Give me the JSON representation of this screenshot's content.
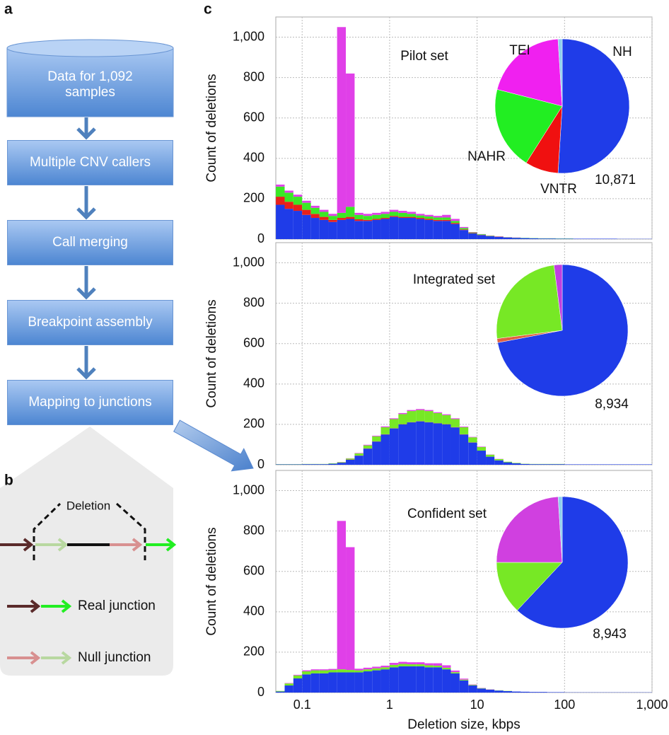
{
  "panel_labels": [
    "a",
    "b",
    "c"
  ],
  "flowchart": {
    "top": "Data for 1,092 samples",
    "steps": [
      "Multiple CNV callers",
      "Call merging",
      "Breakpoint assembly",
      "Mapping to junctions"
    ]
  },
  "junction": {
    "deletion": "Deletion",
    "real": "Real junction",
    "null": "Null junction"
  },
  "chart_data": [
    {
      "type": "histogram",
      "title": "Pilot set",
      "ylabel": "Count of deletions",
      "log_x": true,
      "grid": true,
      "xlim": [
        0.05,
        1000
      ],
      "ylim": [
        0,
        1100
      ],
      "yticks": [
        0,
        200,
        400,
        600,
        800,
        {
          "value": 1000,
          "label": "1,000"
        }
      ],
      "bins": [
        0.0501,
        0.0631,
        0.0794,
        0.1,
        0.126,
        0.158,
        0.2,
        0.251,
        0.316,
        0.398,
        0.501,
        0.631,
        0.794,
        1,
        1.26,
        1.58,
        2,
        2.51,
        3.16,
        3.98,
        5.01,
        6.31,
        7.94,
        10,
        12.6,
        15.8,
        20,
        25.1,
        31.6,
        39.8,
        50.1,
        63.1,
        79.4,
        100,
        126,
        158,
        200,
        251,
        316,
        398,
        501,
        631,
        794,
        1000
      ],
      "series": [
        {
          "color": "#1f3ce8",
          "values": [
            170,
            150,
            140,
            120,
            105,
            95,
            85,
            95,
            100,
            90,
            90,
            95,
            100,
            110,
            105,
            105,
            100,
            95,
            90,
            90,
            75,
            45,
            28,
            20,
            14,
            11,
            8,
            6,
            5,
            4,
            3,
            3,
            2,
            2,
            2,
            2,
            2,
            2,
            2,
            1,
            1,
            1,
            1
          ]
        },
        {
          "color": "#e8201a",
          "values": [
            40,
            35,
            30,
            25,
            20,
            15,
            10,
            10,
            10,
            8,
            5,
            5,
            5,
            5,
            5,
            5,
            5,
            5,
            5,
            5,
            5,
            3,
            2,
            1,
            1,
            1,
            0,
            0,
            0,
            0,
            0,
            0,
            0,
            0,
            0,
            0,
            0,
            0,
            0,
            0,
            0,
            0,
            0
          ]
        },
        {
          "color": "#3be825",
          "values": [
            50,
            45,
            40,
            35,
            30,
            25,
            20,
            25,
            50,
            22,
            20,
            20,
            20,
            20,
            20,
            15,
            12,
            12,
            12,
            12,
            10,
            7,
            3,
            3,
            2,
            1,
            1,
            1,
            1,
            1,
            1,
            1,
            1,
            1,
            0,
            0,
            0,
            0,
            0,
            0,
            0,
            0,
            0
          ]
        },
        {
          "color": "#e040e8",
          "values": [
            10,
            10,
            10,
            10,
            10,
            10,
            10,
            920,
            660,
            10,
            10,
            10,
            10,
            10,
            10,
            10,
            8,
            8,
            8,
            13,
            10,
            5,
            2,
            1,
            1,
            1,
            1,
            1,
            0,
            0,
            0,
            0,
            0,
            0,
            0,
            0,
            0,
            0,
            0,
            0,
            0,
            0,
            0
          ]
        }
      ]
    },
    {
      "type": "histogram",
      "title": "Integrated set",
      "ylabel": "Count of deletions",
      "log_x": true,
      "grid": true,
      "xlim": [
        0.05,
        1000
      ],
      "ylim": [
        0,
        1100
      ],
      "yticks": [
        0,
        200,
        400,
        600,
        800,
        {
          "value": 1000,
          "label": "1,000"
        }
      ],
      "bins": [
        0.0501,
        0.0631,
        0.0794,
        0.1,
        0.126,
        0.158,
        0.2,
        0.251,
        0.316,
        0.398,
        0.501,
        0.631,
        0.794,
        1,
        1.26,
        1.58,
        2,
        2.51,
        3.16,
        3.98,
        5.01,
        6.31,
        7.94,
        10,
        12.6,
        15.8,
        20,
        25.1,
        31.6,
        39.8,
        50.1,
        63.1,
        79.4,
        100,
        126,
        158,
        200,
        251,
        316,
        398,
        501,
        631,
        794,
        1000
      ],
      "series": [
        {
          "color": "#1f3ce8",
          "values": [
            2,
            2,
            2,
            3,
            3,
            3,
            5,
            10,
            25,
            45,
            80,
            115,
            150,
            180,
            200,
            210,
            215,
            210,
            205,
            200,
            185,
            150,
            110,
            70,
            40,
            22,
            12,
            7,
            4,
            3,
            3,
            3,
            3,
            2,
            2,
            2,
            2,
            2,
            2,
            2,
            2,
            2,
            2
          ]
        },
        {
          "color": "#e8201a",
          "values": [
            0,
            0,
            0,
            0,
            0,
            0,
            0,
            0,
            1,
            1,
            1,
            1,
            1,
            1,
            1,
            1,
            1,
            1,
            1,
            1,
            1,
            1,
            1,
            0,
            0,
            0,
            0,
            0,
            0,
            0,
            0,
            0,
            0,
            0,
            0,
            0,
            0,
            0,
            0,
            0,
            0,
            0,
            0
          ]
        },
        {
          "color": "#77e825",
          "values": [
            1,
            1,
            1,
            1,
            1,
            1,
            2,
            3,
            5,
            10,
            15,
            25,
            35,
            45,
            50,
            55,
            55,
            55,
            50,
            45,
            40,
            35,
            25,
            18,
            10,
            6,
            3,
            2,
            1,
            1,
            1,
            1,
            1,
            0,
            0,
            0,
            0,
            0,
            0,
            0,
            0,
            0,
            0
          ]
        },
        {
          "color": "#e040e8",
          "values": [
            0,
            0,
            0,
            0,
            0,
            0,
            0,
            1,
            1,
            2,
            3,
            3,
            4,
            4,
            5,
            5,
            5,
            5,
            4,
            4,
            4,
            3,
            2,
            2,
            1,
            1,
            0,
            0,
            0,
            0,
            0,
            0,
            0,
            0,
            0,
            0,
            0,
            0,
            0,
            0,
            0,
            0,
            0
          ]
        }
      ]
    },
    {
      "type": "histogram",
      "title": "Confident set",
      "ylabel": "Count of deletions",
      "xlabel": "Deletion size, kbps",
      "log_x": true,
      "grid": true,
      "xlim": [
        0.05,
        1000
      ],
      "ylim": [
        0,
        1100
      ],
      "xticks": [
        0.1,
        1,
        10,
        100,
        {
          "value": 1000,
          "label": "1,000"
        }
      ],
      "yticks": [
        0,
        200,
        400,
        600,
        800,
        {
          "value": 1000,
          "label": "1,000"
        }
      ],
      "bins": [
        0.0501,
        0.0631,
        0.0794,
        0.1,
        0.126,
        0.158,
        0.2,
        0.251,
        0.316,
        0.398,
        0.501,
        0.631,
        0.794,
        1,
        1.26,
        1.58,
        2,
        2.51,
        3.16,
        3.98,
        5.01,
        6.31,
        7.94,
        10,
        12.6,
        15.8,
        20,
        25.1,
        31.6,
        39.8,
        50.1,
        63.1,
        79.4,
        100,
        126,
        158,
        200,
        251,
        316,
        398,
        501,
        631,
        794,
        1000
      ],
      "series": [
        {
          "color": "#1f3ce8",
          "values": [
            5,
            35,
            70,
            90,
            95,
            95,
            100,
            100,
            100,
            100,
            105,
            110,
            115,
            125,
            130,
            130,
            130,
            125,
            125,
            115,
            95,
            60,
            35,
            20,
            14,
            10,
            7,
            5,
            4,
            3,
            3,
            2,
            2,
            1,
            1,
            1,
            1,
            1,
            1,
            1,
            1,
            1,
            1
          ]
        },
        {
          "color": "#e8201a",
          "values": [
            0,
            0,
            0,
            0,
            0,
            0,
            0,
            0,
            0,
            0,
            0,
            0,
            0,
            0,
            0,
            0,
            0,
            0,
            0,
            0,
            0,
            0,
            0,
            0,
            0,
            0,
            0,
            0,
            0,
            0,
            0,
            0,
            0,
            0,
            0,
            0,
            0,
            0,
            0,
            0,
            0,
            0,
            0
          ]
        },
        {
          "color": "#77e825",
          "values": [
            3,
            10,
            15,
            15,
            15,
            15,
            12,
            15,
            12,
            10,
            10,
            10,
            10,
            12,
            12,
            10,
            10,
            10,
            8,
            8,
            6,
            4,
            3,
            2,
            1,
            1,
            1,
            0,
            0,
            0,
            0,
            0,
            0,
            0,
            0,
            0,
            0,
            0,
            0,
            0,
            0,
            0,
            0
          ]
        },
        {
          "color": "#e040e8",
          "values": [
            0,
            2,
            3,
            5,
            5,
            5,
            5,
            735,
            608,
            8,
            8,
            8,
            8,
            10,
            10,
            10,
            10,
            10,
            12,
            12,
            8,
            5,
            2,
            1,
            1,
            0,
            0,
            0,
            0,
            0,
            0,
            0,
            0,
            0,
            0,
            0,
            0,
            0,
            0,
            0,
            0,
            0,
            0
          ]
        }
      ]
    },
    {
      "type": "pie",
      "categories": [
        "NH",
        "VNTR",
        "NAHR",
        "TEI",
        null
      ],
      "values": [
        51,
        8,
        20,
        20,
        1
      ],
      "colors": [
        "#1f3ce8",
        "#f01010",
        "#22ee22",
        "#f020f0",
        "#8fd0ee"
      ],
      "label_colors": [
        "#1a1a80",
        "#f01010",
        "#22dd22",
        "#f020f0",
        null
      ],
      "total": "10,871"
    },
    {
      "type": "pie",
      "categories": [
        null,
        null,
        null,
        null
      ],
      "values": [
        72,
        1,
        25,
        2
      ],
      "colors": [
        "#1f3ce8",
        "#e06040",
        "#77e825",
        "#c040e0"
      ],
      "total": "8,934"
    },
    {
      "type": "pie",
      "categories": [
        null,
        null,
        null,
        null
      ],
      "values": [
        62,
        13,
        24,
        1
      ],
      "colors": [
        "#1f3ce8",
        "#77e825",
        "#d040e0",
        "#8fd0ee"
      ],
      "total": "8,943"
    }
  ]
}
